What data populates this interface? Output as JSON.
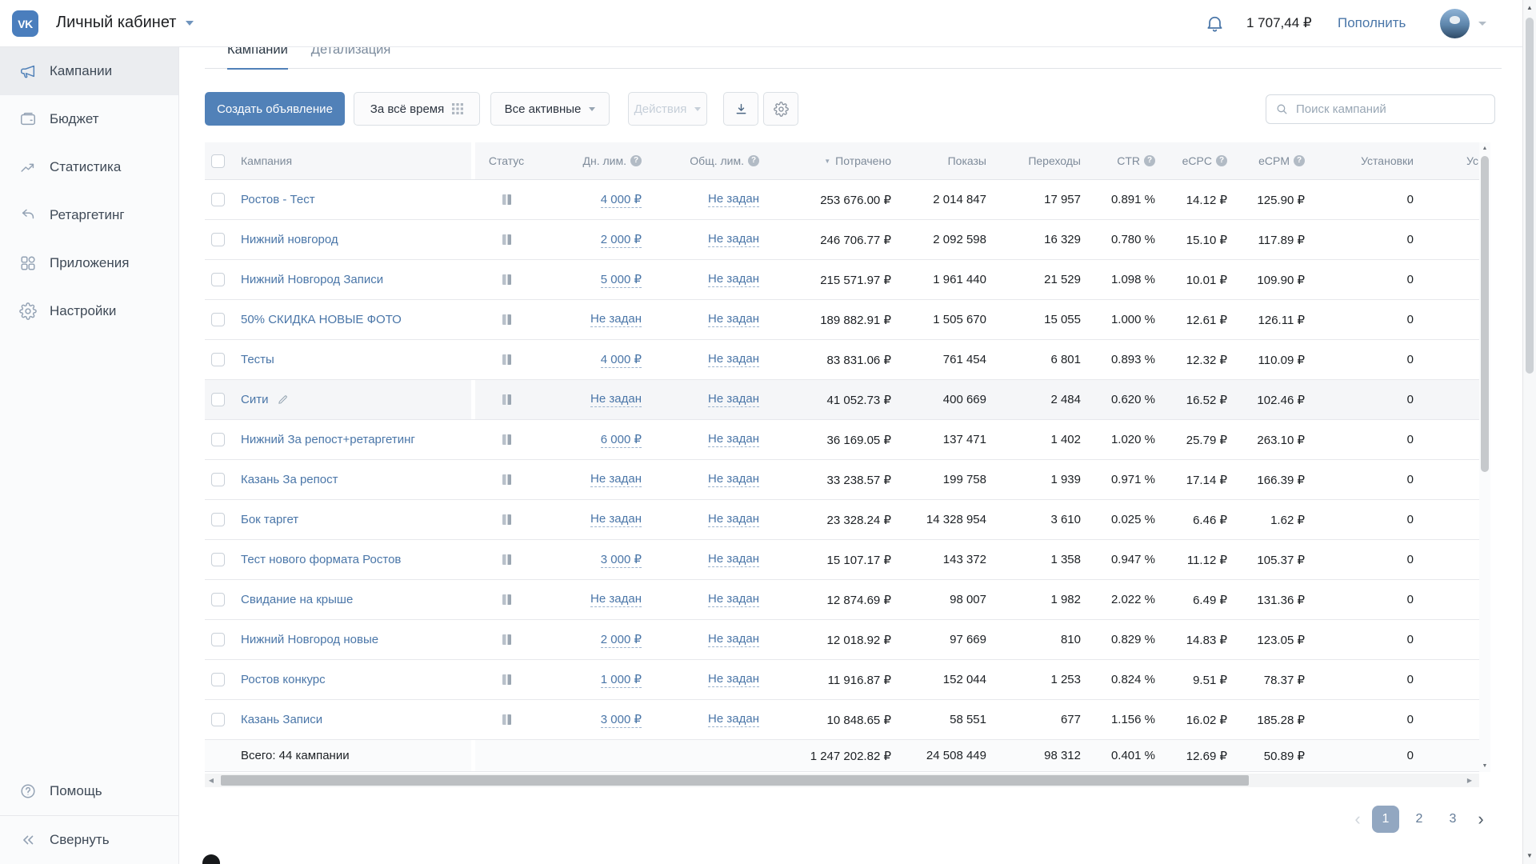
{
  "topbar": {
    "title": "Личный кабинет",
    "balance": "1 707,44 ₽",
    "topup_label": "Пополнить"
  },
  "sidebar": {
    "items": [
      {
        "name": "sidebar-item-campaigns",
        "label": "Кампании",
        "icon": "megaphone-icon",
        "active": true
      },
      {
        "name": "sidebar-item-budget",
        "label": "Бюджет",
        "icon": "wallet-icon",
        "active": false
      },
      {
        "name": "sidebar-item-statistics",
        "label": "Статистика",
        "icon": "stats-icon",
        "active": false
      },
      {
        "name": "sidebar-item-retargeting",
        "label": "Ретаргетинг",
        "icon": "undo-icon",
        "active": false
      },
      {
        "name": "sidebar-item-apps",
        "label": "Приложения",
        "icon": "apps-grid-icon",
        "active": false
      },
      {
        "name": "sidebar-item-settings",
        "label": "Настройки",
        "icon": "gear-icon",
        "active": false
      }
    ],
    "help_label": "Помощь",
    "collapse_label": "Свернуть"
  },
  "tabs": [
    {
      "label": "Кампании",
      "active": true
    },
    {
      "label": "Детализация",
      "active": false
    }
  ],
  "toolbar": {
    "create_label": "Создать объявление",
    "period_label": "За всё время",
    "filter_label": "Все активные",
    "actions_label": "Действия",
    "search_placeholder": "Поиск кампаний"
  },
  "table": {
    "columns": {
      "name": "Кампания",
      "status": "Статус",
      "daily_limit": "Дн. лим.",
      "total_limit": "Общ. лим.",
      "spent": "Потрачено",
      "impressions": "Показы",
      "clicks": "Переходы",
      "ctr": "CTR",
      "ecpc": "eCPC",
      "ecpm": "eCPM",
      "installs": "Установки",
      "cut": "Ус"
    },
    "rows": [
      {
        "name": "Ростов - Тест",
        "status": "paused",
        "daily_limit": "4 000 ₽",
        "total_limit": "Не задан",
        "spent": "253 676.00 ₽",
        "impressions": "2 014 847",
        "clicks": "17 957",
        "ctr": "0.891 %",
        "ecpc": "14.12 ₽",
        "ecpm": "125.90 ₽",
        "installs": "0",
        "highlighted": false,
        "editing": false
      },
      {
        "name": "Нижний новгород",
        "status": "paused",
        "daily_limit": "2 000 ₽",
        "total_limit": "Не задан",
        "spent": "246 706.77 ₽",
        "impressions": "2 092 598",
        "clicks": "16 329",
        "ctr": "0.780 %",
        "ecpc": "15.10 ₽",
        "ecpm": "117.89 ₽",
        "installs": "0",
        "highlighted": false,
        "editing": false
      },
      {
        "name": "Нижний Новгород Записи",
        "status": "paused",
        "daily_limit": "5 000 ₽",
        "total_limit": "Не задан",
        "spent": "215 571.97 ₽",
        "impressions": "1 961 440",
        "clicks": "21 529",
        "ctr": "1.098 %",
        "ecpc": "10.01 ₽",
        "ecpm": "109.90 ₽",
        "installs": "0",
        "highlighted": false,
        "editing": false
      },
      {
        "name": "50% СКИДКА НОВЫЕ ФОТО",
        "status": "paused",
        "daily_limit": "Не задан",
        "total_limit": "Не задан",
        "spent": "189 882.91 ₽",
        "impressions": "1 505 670",
        "clicks": "15 055",
        "ctr": "1.000 %",
        "ecpc": "12.61 ₽",
        "ecpm": "126.11 ₽",
        "installs": "0",
        "highlighted": false,
        "editing": false
      },
      {
        "name": "Тесты",
        "status": "paused",
        "daily_limit": "4 000 ₽",
        "total_limit": "Не задан",
        "spent": "83 831.06 ₽",
        "impressions": "761 454",
        "clicks": "6 801",
        "ctr": "0.893 %",
        "ecpc": "12.32 ₽",
        "ecpm": "110.09 ₽",
        "installs": "0",
        "highlighted": false,
        "editing": false
      },
      {
        "name": "Сити",
        "status": "paused",
        "daily_limit": "Не задан",
        "total_limit": "Не задан",
        "spent": "41 052.73 ₽",
        "impressions": "400 669",
        "clicks": "2 484",
        "ctr": "0.620 %",
        "ecpc": "16.52 ₽",
        "ecpm": "102.46 ₽",
        "installs": "0",
        "highlighted": true,
        "editing": true
      },
      {
        "name": "Нижний За репост+ретаргетинг",
        "status": "paused",
        "daily_limit": "6 000 ₽",
        "total_limit": "Не задан",
        "spent": "36 169.05 ₽",
        "impressions": "137 471",
        "clicks": "1 402",
        "ctr": "1.020 %",
        "ecpc": "25.79 ₽",
        "ecpm": "263.10 ₽",
        "installs": "0",
        "highlighted": false,
        "editing": false
      },
      {
        "name": "Казань За репост",
        "status": "paused",
        "daily_limit": "Не задан",
        "total_limit": "Не задан",
        "spent": "33 238.57 ₽",
        "impressions": "199 758",
        "clicks": "1 939",
        "ctr": "0.971 %",
        "ecpc": "17.14 ₽",
        "ecpm": "166.39 ₽",
        "installs": "0",
        "highlighted": false,
        "editing": false
      },
      {
        "name": "Бок таргет",
        "status": "paused",
        "daily_limit": "Не задан",
        "total_limit": "Не задан",
        "spent": "23 328.24 ₽",
        "impressions": "14 328 954",
        "clicks": "3 610",
        "ctr": "0.025 %",
        "ecpc": "6.46 ₽",
        "ecpm": "1.62 ₽",
        "installs": "0",
        "highlighted": false,
        "editing": false
      },
      {
        "name": "Тест нового формата Ростов",
        "status": "paused",
        "daily_limit": "3 000 ₽",
        "total_limit": "Не задан",
        "spent": "15 107.17 ₽",
        "impressions": "143 372",
        "clicks": "1 358",
        "ctr": "0.947 %",
        "ecpc": "11.12 ₽",
        "ecpm": "105.37 ₽",
        "installs": "0",
        "highlighted": false,
        "editing": false
      },
      {
        "name": "Свидание на крыше",
        "status": "paused",
        "daily_limit": "Не задан",
        "total_limit": "Не задан",
        "spent": "12 874.69 ₽",
        "impressions": "98 007",
        "clicks": "1 982",
        "ctr": "2.022 %",
        "ecpc": "6.49 ₽",
        "ecpm": "131.36 ₽",
        "installs": "0",
        "highlighted": false,
        "editing": false
      },
      {
        "name": "Нижний Новгород новые",
        "status": "paused",
        "daily_limit": "2 000 ₽",
        "total_limit": "Не задан",
        "spent": "12 018.92 ₽",
        "impressions": "97 669",
        "clicks": "810",
        "ctr": "0.829 %",
        "ecpc": "14.83 ₽",
        "ecpm": "123.05 ₽",
        "installs": "0",
        "highlighted": false,
        "editing": false
      },
      {
        "name": "Ростов конкурс",
        "status": "paused",
        "daily_limit": "1 000 ₽",
        "total_limit": "Не задан",
        "spent": "11 916.87 ₽",
        "impressions": "152 044",
        "clicks": "1 253",
        "ctr": "0.824 %",
        "ecpc": "9.51 ₽",
        "ecpm": "78.37 ₽",
        "installs": "0",
        "highlighted": false,
        "editing": false
      },
      {
        "name": "Казань Записи",
        "status": "paused",
        "daily_limit": "3 000 ₽",
        "total_limit": "Не задан",
        "spent": "10 848.65 ₽",
        "impressions": "58 551",
        "clicks": "677",
        "ctr": "1.156 %",
        "ecpc": "16.02 ₽",
        "ecpm": "185.28 ₽",
        "installs": "0",
        "highlighted": false,
        "editing": false
      }
    ],
    "footer": {
      "label": "Всего: 44 кампании",
      "spent": "1 247 202.82 ₽",
      "impressions": "24 508 449",
      "clicks": "98 312",
      "ctr": "0.401 %",
      "ecpc": "12.69 ₽",
      "ecpm": "50.89 ₽",
      "installs": "0"
    }
  },
  "pagination": {
    "pages": [
      "1",
      "2",
      "3"
    ],
    "active": "1"
  },
  "colors": {
    "accent": "#5181b8",
    "link": "#4a76a8",
    "logo": "#4a7ebd",
    "pagination_active": "#92a7c1"
  }
}
